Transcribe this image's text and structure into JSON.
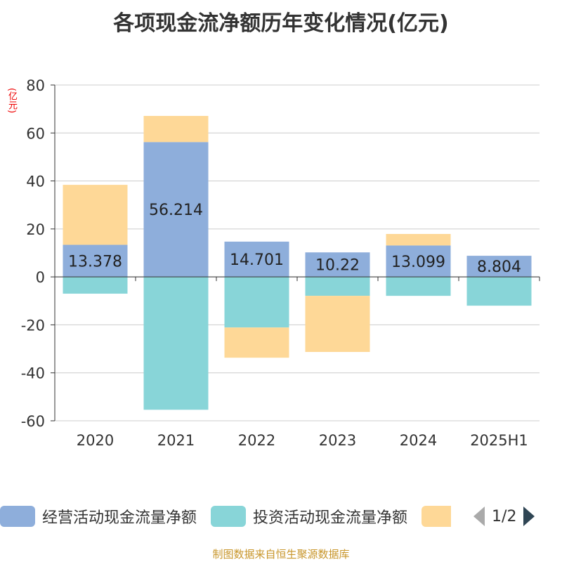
{
  "chart_data": {
    "type": "bar",
    "stacked": true,
    "title": "各项现金流净额历年变化情况(亿元)",
    "ylabel": "(亿元)",
    "categories": [
      "2020",
      "2021",
      "2022",
      "2023",
      "2024",
      "2025H1"
    ],
    "ylim": [
      -60,
      80
    ],
    "yticks": [
      80,
      60,
      40,
      20,
      0,
      -20,
      -40,
      -60
    ],
    "grid": true,
    "legend_placement": "bottom",
    "series": [
      {
        "name": "经营活动现金流量净额",
        "color": "#8eaedb",
        "values": [
          13.378,
          56.214,
          14.701,
          10.22,
          13.099,
          8.804
        ],
        "labels": [
          "13.378",
          "56.214",
          "14.701",
          "10.22",
          "13.099",
          "8.804"
        ]
      },
      {
        "name": "投资活动现金流量净额",
        "color": "#88d5d8",
        "values": [
          -7.0,
          -55.4,
          -21.1,
          -7.9,
          -7.9,
          -12.0
        ]
      },
      {
        "name": "",
        "color": "#fed897",
        "values": [
          25.0,
          10.9,
          -12.6,
          -23.4,
          4.8,
          0
        ]
      }
    ]
  },
  "legend": {
    "page": "1/2"
  },
  "source": "制图数据来自恒生聚源数据库"
}
